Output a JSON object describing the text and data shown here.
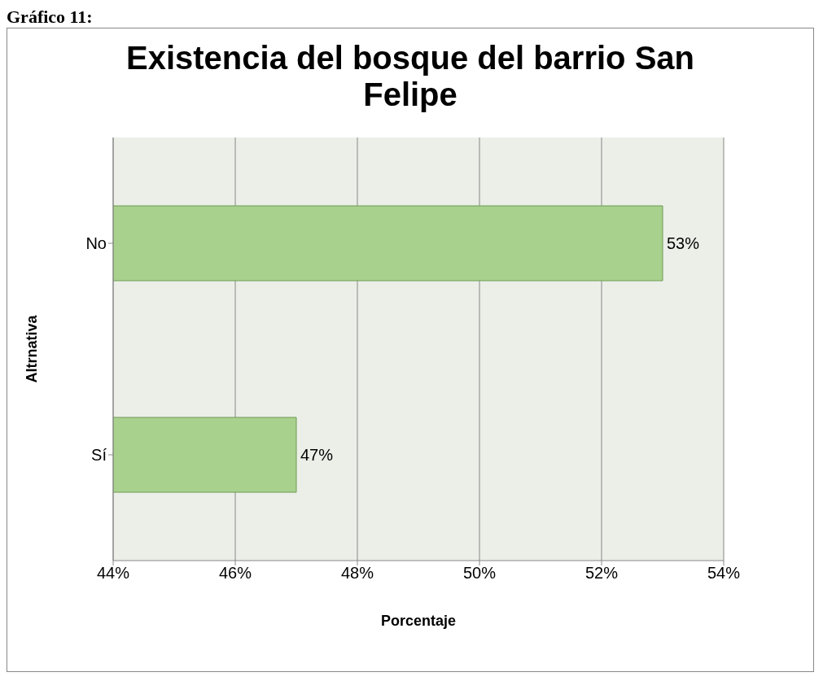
{
  "chart_data": {
    "type": "bar",
    "orientation": "horizontal",
    "title": "Existencia del bosque del barrio San Felipe",
    "xlabel": "Porcentaje",
    "ylabel": "Altrnativa",
    "annotations": [
      "Gráfico 11:"
    ],
    "categories": [
      "No",
      "Sí"
    ],
    "values": [
      53,
      47
    ],
    "color": "#a9d18e",
    "value_labels": [
      "53%",
      "47%"
    ],
    "xlim": [
      44,
      54
    ],
    "xticks": [
      {
        "value": 44,
        "label": "44%"
      },
      {
        "value": 46,
        "label": "46%"
      },
      {
        "value": 48,
        "label": "48%"
      },
      {
        "value": 50,
        "label": "50%"
      },
      {
        "value": 52,
        "label": "52%"
      },
      {
        "value": 54,
        "label": "54%"
      }
    ],
    "grid": "x"
  }
}
